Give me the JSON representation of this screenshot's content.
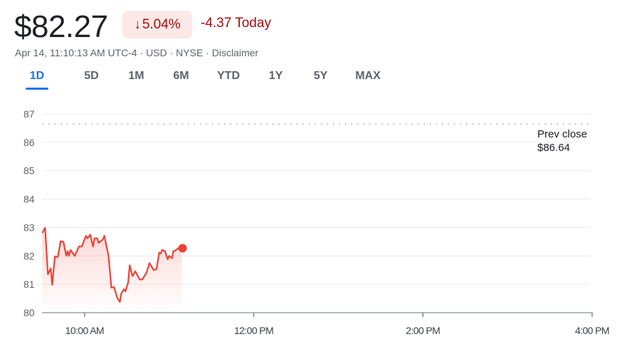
{
  "quote": {
    "price": "$82.27",
    "change_percent": "5.04%",
    "direction_icon": "arrow-down-icon",
    "change_today": "-4.37 Today",
    "meta": "Apr 14, 11:10:13 AM UTC-4 · USD · NYSE · Disclaimer"
  },
  "tabs": [
    {
      "label": "1D",
      "active": true
    },
    {
      "label": "5D"
    },
    {
      "label": "1M"
    },
    {
      "label": "6M"
    },
    {
      "label": "YTD"
    },
    {
      "label": "1Y"
    },
    {
      "label": "5Y"
    },
    {
      "label": "MAX"
    }
  ],
  "prev_close": {
    "label": "Prev close",
    "value": "$86.64",
    "price": 86.64
  },
  "colors": {
    "negative": "#ea4335",
    "negative_text": "#a50e0e",
    "accent": "#1a73e8"
  },
  "chart_data": {
    "type": "area",
    "grid": true,
    "ylim": [
      80,
      87
    ],
    "y_ticks": [
      "80",
      "81",
      "82",
      "83",
      "84",
      "85",
      "86",
      "87"
    ],
    "xlim": [
      "09:30",
      "16:00"
    ],
    "x_ticks": [
      {
        "time": "10:00",
        "label": "10:00 AM"
      },
      {
        "time": "12:00",
        "label": "12:00 PM"
      },
      {
        "time": "14:00",
        "label": "2:00 PM"
      },
      {
        "time": "16:00",
        "label": "4:00 PM"
      }
    ],
    "series": [
      {
        "x": [
          "09:30",
          "09:32",
          "09:34",
          "09:36",
          "09:37",
          "09:39",
          "09:41",
          "09:43",
          "09:45",
          "09:47",
          "09:48",
          "09:49",
          "09:50",
          "09:53",
          "09:56",
          "09:58",
          "10:01",
          "10:02",
          "10:04",
          "10:06",
          "10:07",
          "10:09",
          "10:10",
          "10:13",
          "10:14",
          "10:17",
          "10:19",
          "10:21",
          "10:23",
          "10:25",
          "10:26",
          "10:28",
          "10:29",
          "10:31",
          "10:32",
          "10:34",
          "10:36",
          "10:39",
          "10:41",
          "10:44",
          "10:46",
          "10:49",
          "10:51",
          "10:53",
          "10:54",
          "10:55",
          "10:57",
          "10:59",
          "11:00",
          "11:02",
          "11:03",
          "11:04",
          "11:07",
          "11:09"
        ],
        "y": [
          82.81,
          82.99,
          81.35,
          81.56,
          80.98,
          81.98,
          81.96,
          82.52,
          82.5,
          82.0,
          82.17,
          82.0,
          82.21,
          82.0,
          82.33,
          82.33,
          82.71,
          82.62,
          82.75,
          82.33,
          82.62,
          82.62,
          82.46,
          82.58,
          82.71,
          82.0,
          80.88,
          80.9,
          80.54,
          80.38,
          80.67,
          80.83,
          80.75,
          81.08,
          81.67,
          81.29,
          81.46,
          81.17,
          81.17,
          81.42,
          81.75,
          81.5,
          81.54,
          82.12,
          82.08,
          82.21,
          82.17,
          81.88,
          82.0,
          81.92,
          82.17,
          82.18,
          82.29,
          82.27
        ]
      }
    ]
  }
}
